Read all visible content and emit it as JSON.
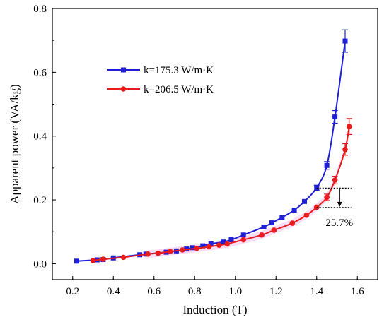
{
  "chart_data": {
    "type": "line",
    "xlabel": "Induction (T)",
    "ylabel": "Apparent power (VA/kg)",
    "xlim": [
      0.1,
      1.7
    ],
    "ylim": [
      -0.05,
      0.8
    ],
    "xticks": [
      "0.2",
      "0.4",
      "0.6",
      "0.8",
      "1.0",
      "1.2",
      "1.4",
      "1.6"
    ],
    "yticks": [
      "0.0",
      "0.2",
      "0.4",
      "0.6",
      "0.8"
    ],
    "grid": false,
    "legend_position": "upper-left",
    "series": [
      {
        "name": "k=175.3 W/m·K",
        "color": "#1f1fd6",
        "marker": "square",
        "x": [
          0.22,
          0.32,
          0.35,
          0.4,
          0.53,
          0.56,
          0.66,
          0.71,
          0.76,
          0.79,
          0.84,
          0.88,
          0.94,
          0.98,
          1.04,
          1.14,
          1.18,
          1.23,
          1.29,
          1.34,
          1.4,
          1.45,
          1.49,
          1.54
        ],
        "y": [
          0.008,
          0.012,
          0.013,
          0.018,
          0.028,
          0.03,
          0.036,
          0.04,
          0.046,
          0.05,
          0.056,
          0.062,
          0.068,
          0.075,
          0.09,
          0.115,
          0.128,
          0.145,
          0.168,
          0.195,
          0.238,
          0.308,
          0.46,
          0.698
        ],
        "error": [
          0,
          0,
          0,
          0,
          0,
          0,
          0,
          0,
          0,
          0,
          0,
          0,
          0,
          0,
          0,
          0,
          0,
          0,
          0,
          0,
          0.008,
          0.012,
          0.02,
          0.035
        ]
      },
      {
        "name": "k=206.5 W/m·K",
        "color": "#e81c1c",
        "marker": "circle",
        "x": [
          0.3,
          0.35,
          0.45,
          0.57,
          0.62,
          0.68,
          0.74,
          0.81,
          0.87,
          0.92,
          0.96,
          1.04,
          1.13,
          1.19,
          1.28,
          1.35,
          1.4,
          1.45,
          1.49,
          1.54,
          1.56
        ],
        "y": [
          0.01,
          0.014,
          0.02,
          0.03,
          0.033,
          0.038,
          0.043,
          0.048,
          0.053,
          0.058,
          0.062,
          0.075,
          0.09,
          0.105,
          0.127,
          0.152,
          0.177,
          0.208,
          0.262,
          0.358,
          0.43
        ],
        "error": [
          0,
          0,
          0,
          0,
          0,
          0,
          0,
          0,
          0,
          0,
          0,
          0,
          0,
          0,
          0,
          0,
          0,
          0.01,
          0.012,
          0.018,
          0.025
        ]
      }
    ],
    "annotation": {
      "text": "25.7%",
      "upper_value": 0.237,
      "lower_value": 0.176,
      "x_from": 1.4,
      "x_to": 1.57
    }
  }
}
